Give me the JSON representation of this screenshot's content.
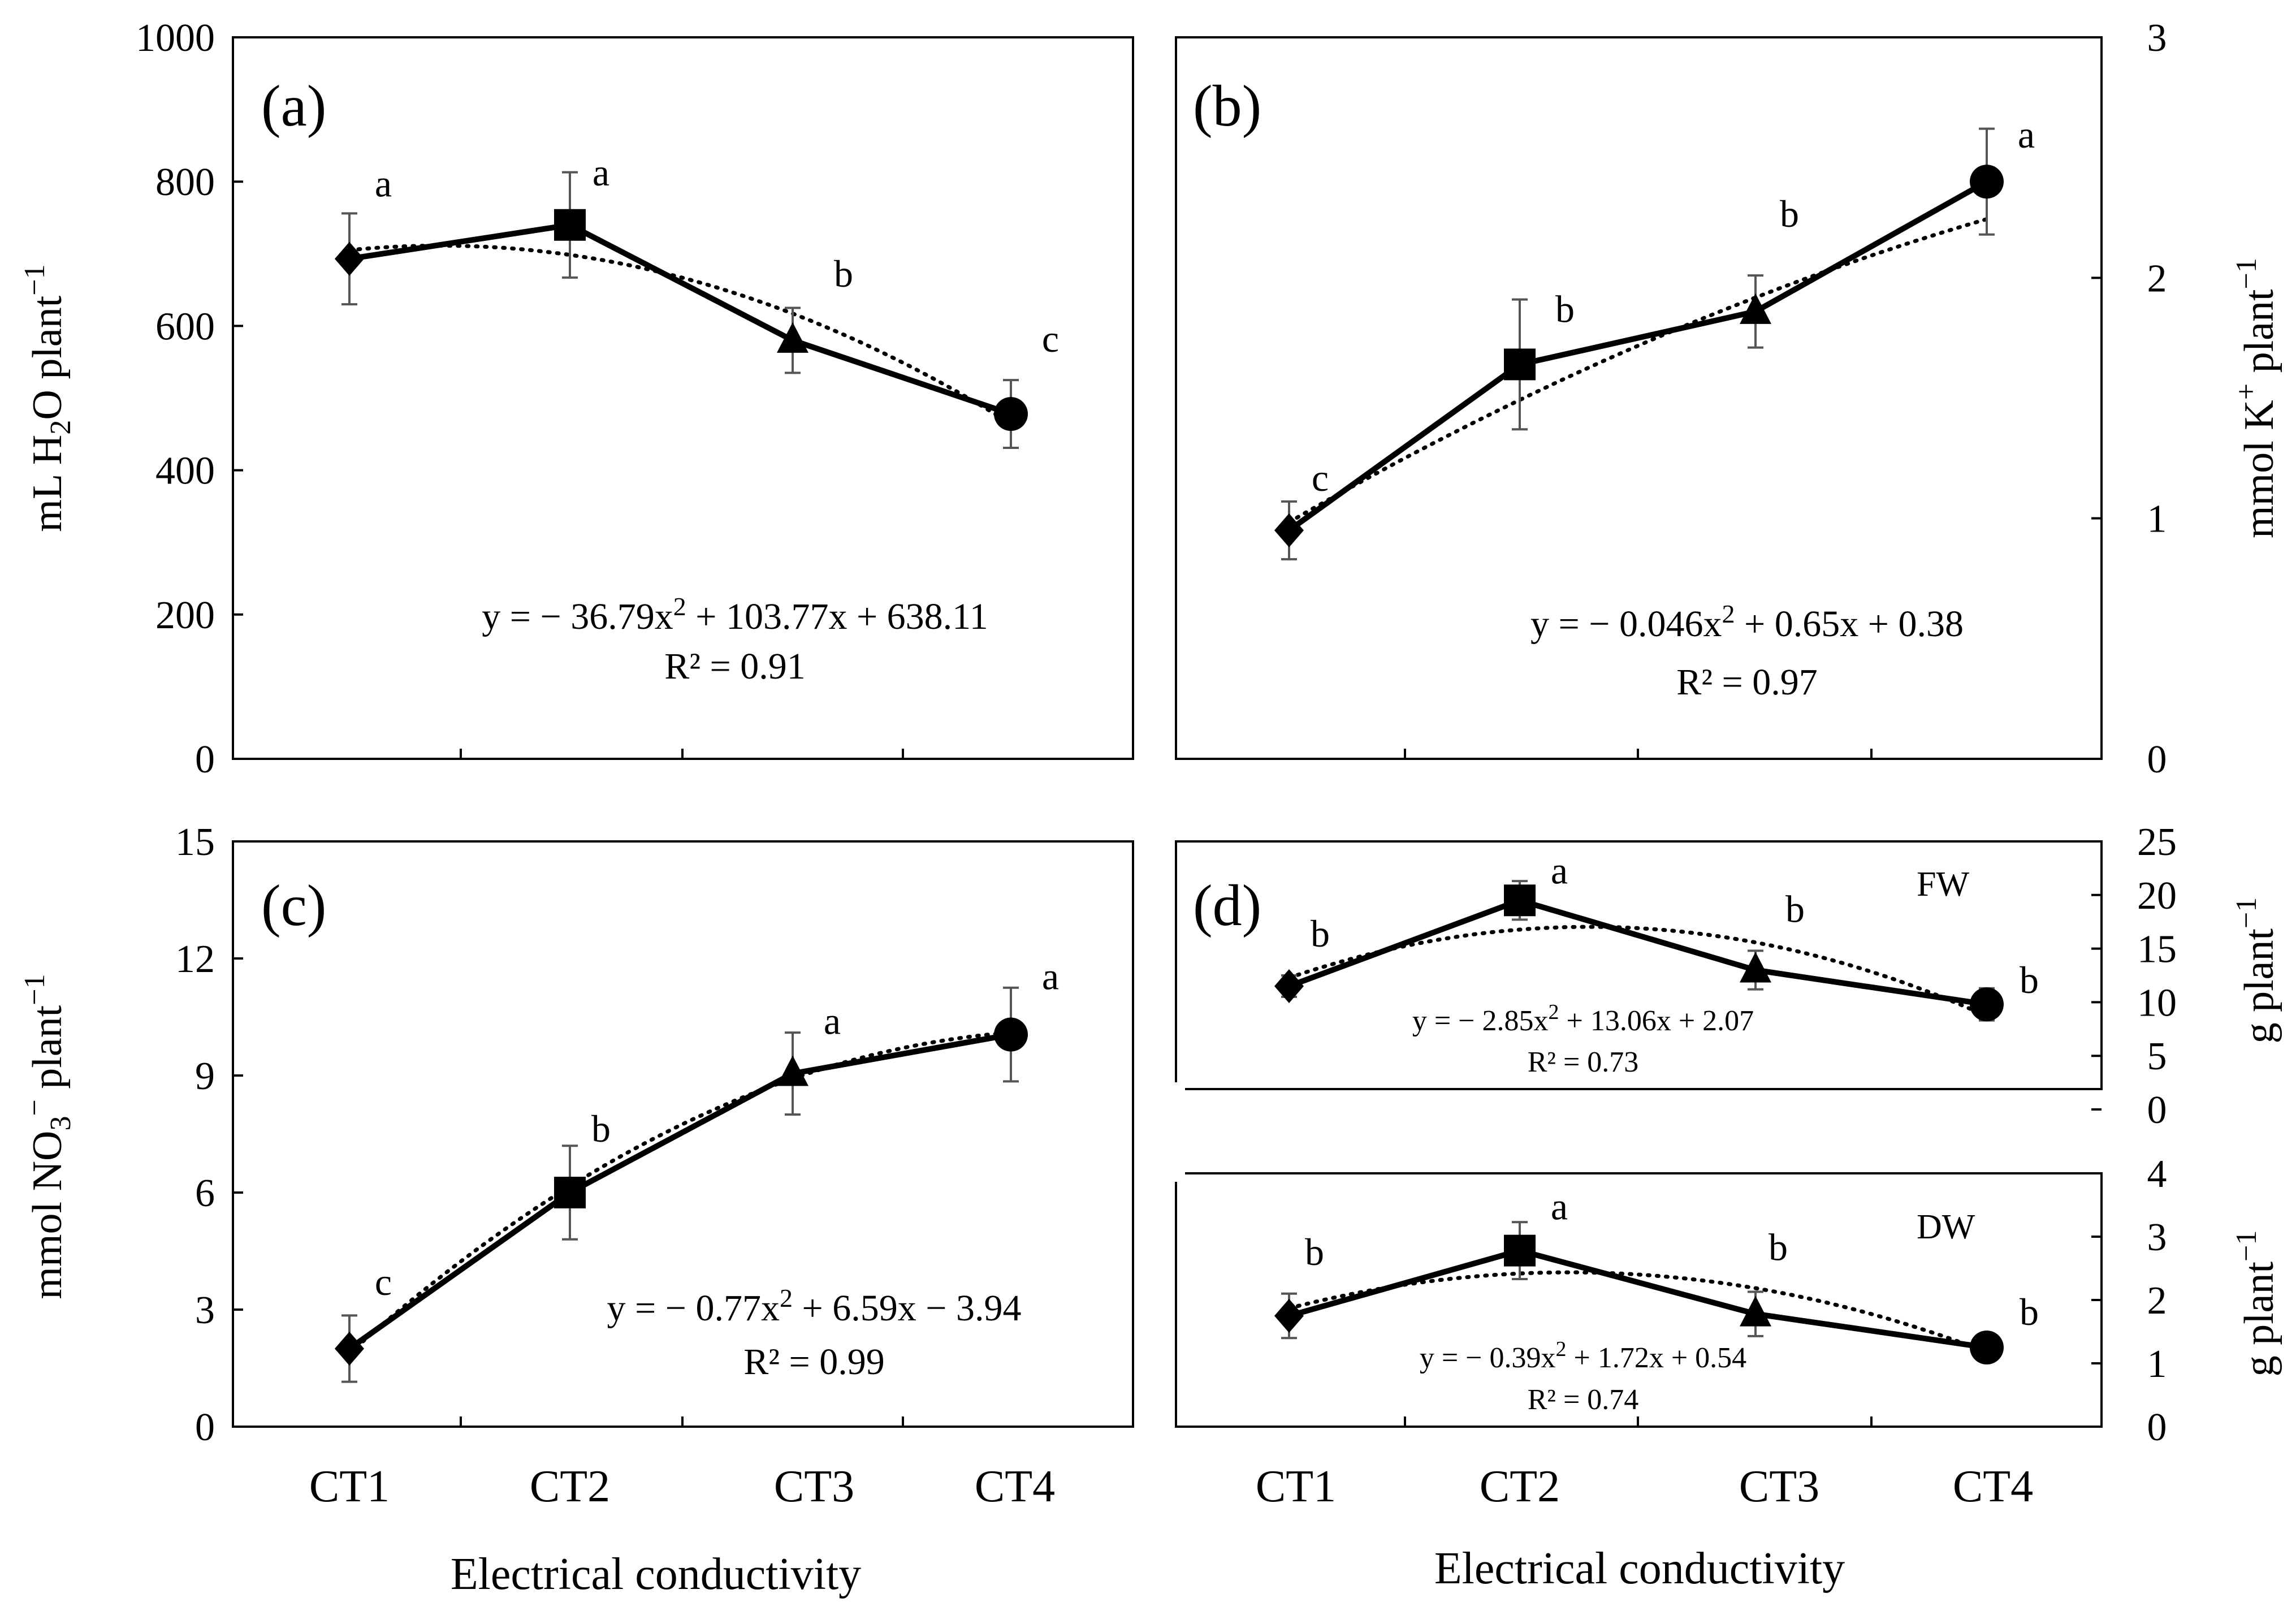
{
  "figure": {
    "xlabel": "Electrical conductivity",
    "categories": [
      "CT1",
      "CT2",
      "CT3",
      "CT4"
    ]
  },
  "chart_data": [
    {
      "id": "a",
      "panel_label": "(a)",
      "type": "line",
      "ylabel_parts": [
        "mL H",
        "2",
        "O plant",
        "−1"
      ],
      "ylim": [
        0,
        1000
      ],
      "yticks": [
        "0",
        "200",
        "400",
        "600",
        "800",
        "1000"
      ],
      "x": [
        1,
        2,
        3,
        4
      ],
      "values": [
        693,
        740,
        580,
        478
      ],
      "errors": [
        63,
        73,
        45,
        47
      ],
      "markers": [
        "diamond",
        "square",
        "triangle",
        "circle"
      ],
      "letters": [
        "a",
        "a",
        "b",
        "c"
      ],
      "trend": {
        "a": -36.79,
        "b": 103.77,
        "c": 638.11
      },
      "equation_parts": [
        "y = − 36.79x",
        "2",
        " + 103.77x + 638.11"
      ],
      "r2": "R² = 0.91"
    },
    {
      "id": "b",
      "panel_label": "(b)",
      "type": "line",
      "ylabel_parts": [
        "mmol  K",
        "+",
        " plant",
        "−1"
      ],
      "ylim": [
        0,
        3
      ],
      "yticks": [
        "0",
        "1",
        "2",
        "3"
      ],
      "x": [
        1,
        2,
        3,
        4
      ],
      "values": [
        0.95,
        1.64,
        1.86,
        2.4
      ],
      "errors": [
        0.12,
        0.27,
        0.15,
        0.22
      ],
      "markers": [
        "diamond",
        "square",
        "triangle",
        "circle"
      ],
      "letters": [
        "c",
        "b",
        "b",
        "a"
      ],
      "trend": {
        "a": -0.046,
        "b": 0.65,
        "c": 0.38
      },
      "equation_parts": [
        "y = − 0.046x",
        "2",
        " + 0.65x + 0.38"
      ],
      "r2": "R² = 0.97"
    },
    {
      "id": "c",
      "panel_label": "(c)",
      "type": "line",
      "ylabel_parts": [
        "mmol  NO",
        "3",
        "−",
        " plant",
        "−1"
      ],
      "ylim": [
        0,
        15
      ],
      "yticks": [
        "0",
        "3",
        "6",
        "9",
        "12",
        "15"
      ],
      "x": [
        1,
        2,
        3,
        4
      ],
      "values": [
        2.0,
        6.0,
        9.05,
        10.05
      ],
      "errors": [
        0.85,
        1.2,
        1.05,
        1.2
      ],
      "markers": [
        "diamond",
        "square",
        "triangle",
        "circle"
      ],
      "letters": [
        "c",
        "b",
        "a",
        "a"
      ],
      "trend": {
        "a": -0.77,
        "b": 6.59,
        "c": -3.94
      },
      "equation_parts": [
        "y = − 0.77x",
        "2",
        " + 6.59x − 3.94"
      ],
      "r2": "R² = 0.99"
    },
    {
      "id": "d_fw",
      "panel_label": "(d)",
      "series_label": "FW",
      "type": "line",
      "ylabel_parts": [
        "g plant",
        "−1"
      ],
      "ylim": [
        0,
        25
      ],
      "yticks": [
        "0",
        "5",
        "10",
        "15",
        "20",
        "25"
      ],
      "x": [
        1,
        2,
        3,
        4
      ],
      "values": [
        11.5,
        19.5,
        13.0,
        9.8
      ],
      "errors": [
        1.0,
        1.8,
        1.8,
        1.5
      ],
      "markers": [
        "diamond",
        "square",
        "triangle",
        "circle"
      ],
      "letters": [
        "b",
        "a",
        "b",
        "b"
      ],
      "trend": {
        "a": -2.85,
        "b": 13.06,
        "c": 2.07
      },
      "equation_parts": [
        "y = − 2.85x",
        "2",
        " + 13.06x + 2.07"
      ],
      "r2": "R² = 0.73"
    },
    {
      "id": "d_dw",
      "series_label": "DW",
      "type": "line",
      "ylabel_parts": [
        "g plant",
        "−1"
      ],
      "ylim": [
        0,
        4
      ],
      "yticks": [
        "0",
        "1",
        "2",
        "3",
        "4"
      ],
      "x": [
        1,
        2,
        3,
        4
      ],
      "values": [
        1.75,
        2.78,
        1.78,
        1.25
      ],
      "errors": [
        0.35,
        0.45,
        0.35,
        0.08
      ],
      "markers": [
        "diamond",
        "square",
        "triangle",
        "circle"
      ],
      "letters": [
        "b",
        "a",
        "b",
        "b"
      ],
      "trend": {
        "a": -0.39,
        "b": 1.72,
        "c": 0.54
      },
      "equation_parts": [
        "y = − 0.39x",
        "2",
        " + 1.72x + 0.54"
      ],
      "r2": "R² = 0.74"
    }
  ]
}
